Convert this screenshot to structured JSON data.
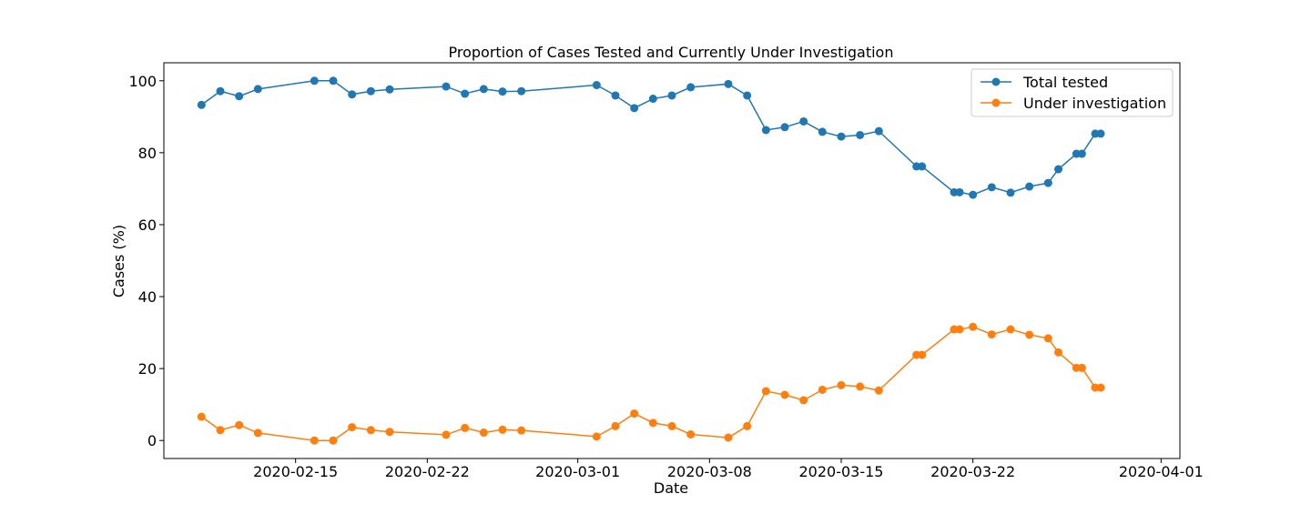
{
  "chart_data": {
    "type": "line",
    "title": "Proportion of Cases Tested and Currently Under Investigation",
    "xlabel": "Date",
    "ylabel": "Cases (%)",
    "x_ticks": [
      "2020-02-15",
      "2020-02-22",
      "2020-03-01",
      "2020-03-08",
      "2020-03-15",
      "2020-03-22",
      "2020-04-01"
    ],
    "y_ticks": [
      0,
      20,
      40,
      60,
      80,
      100
    ],
    "xlim": [
      "2020-02-08",
      "2020-04-02"
    ],
    "ylim": [
      -5,
      105
    ],
    "grid": false,
    "legend_position": "top-right",
    "x": [
      "2020-02-10",
      "2020-02-11",
      "2020-02-12",
      "2020-02-13",
      "2020-02-16",
      "2020-02-17",
      "2020-02-18",
      "2020-02-19",
      "2020-02-20",
      "2020-02-23",
      "2020-02-24",
      "2020-02-25",
      "2020-02-26",
      "2020-02-27",
      "2020-03-02",
      "2020-03-03",
      "2020-03-04",
      "2020-03-05",
      "2020-03-06",
      "2020-03-07",
      "2020-03-09",
      "2020-03-10",
      "2020-03-11",
      "2020-03-12",
      "2020-03-13",
      "2020-03-14",
      "2020-03-15",
      "2020-03-16",
      "2020-03-17",
      "2020-03-19",
      "2020-03-20",
      "2020-03-21",
      "2020-03-23",
      "2020-03-24",
      "2020-03-25",
      "2020-03-26",
      "2020-03-27",
      "2020-03-28",
      "2020-03-29",
      "2020-03-30",
      "2020-03-31"
    ],
    "x_offsets_days": [],
    "series": [
      {
        "name": "Total tested",
        "color": "#1f77b4",
        "points": [
          [
            "2020-02-10",
            93.3
          ],
          [
            "2020-02-11",
            97.1
          ],
          [
            "2020-02-12",
            95.7
          ],
          [
            "2020-02-13",
            97.7
          ],
          [
            "2020-02-16",
            100.0
          ],
          [
            "2020-02-17",
            100.0
          ],
          [
            "2020-02-18",
            96.2
          ],
          [
            "2020-02-19",
            97.1
          ],
          [
            "2020-02-20",
            97.6
          ],
          [
            "2020-02-23",
            98.4
          ],
          [
            "2020-02-24",
            96.4
          ],
          [
            "2020-02-25",
            97.7
          ],
          [
            "2020-02-26",
            97.0
          ],
          [
            "2020-02-27",
            97.1
          ],
          [
            "2020-03-02",
            98.8
          ],
          [
            "2020-03-03",
            95.9
          ],
          [
            "2020-03-04",
            92.4
          ],
          [
            "2020-03-05",
            95.0
          ],
          [
            "2020-03-06",
            95.9
          ],
          [
            "2020-03-07",
            98.2
          ],
          [
            "2020-03-09",
            99.1
          ],
          [
            "2020-03-10",
            95.9
          ],
          [
            "2020-03-11",
            86.3
          ],
          [
            "2020-03-12",
            87.1
          ],
          [
            "2020-03-13",
            88.7
          ],
          [
            "2020-03-14",
            85.8
          ],
          [
            "2020-03-15",
            84.5
          ],
          [
            "2020-03-16",
            84.9
          ],
          [
            "2020-03-17",
            86.0
          ],
          [
            "2020-03-19",
            76.2
          ],
          [
            "2020-03-19 07:00",
            76.2
          ],
          [
            "2020-03-21",
            69.0
          ],
          [
            "2020-03-21 07:00",
            69.0
          ],
          [
            "2020-03-22",
            68.3
          ],
          [
            "2020-03-23",
            70.4
          ],
          [
            "2020-03-24",
            68.9
          ],
          [
            "2020-03-25",
            70.6
          ],
          [
            "2020-03-26",
            71.6
          ],
          [
            "2020-03-26 13:00",
            75.4
          ],
          [
            "2020-03-27 12:00",
            79.7
          ],
          [
            "2020-03-27 19:00",
            79.7
          ],
          [
            "2020-03-28 12:00",
            85.3
          ],
          [
            "2020-03-28 19:00",
            85.3
          ]
        ]
      },
      {
        "name": "Under investigation",
        "color": "#ff7f0e",
        "points": [
          [
            "2020-02-10",
            6.6
          ],
          [
            "2020-02-11",
            2.9
          ],
          [
            "2020-02-12",
            4.3
          ],
          [
            "2020-02-13",
            2.1
          ],
          [
            "2020-02-16",
            0.0
          ],
          [
            "2020-02-17",
            0.0
          ],
          [
            "2020-02-18",
            3.7
          ],
          [
            "2020-02-19",
            2.9
          ],
          [
            "2020-02-20",
            2.4
          ],
          [
            "2020-02-23",
            1.6
          ],
          [
            "2020-02-24",
            3.5
          ],
          [
            "2020-02-25",
            2.2
          ],
          [
            "2020-02-26",
            3.0
          ],
          [
            "2020-02-27",
            2.8
          ],
          [
            "2020-03-02",
            1.1
          ],
          [
            "2020-03-03",
            4.0
          ],
          [
            "2020-03-04",
            7.5
          ],
          [
            "2020-03-05",
            4.9
          ],
          [
            "2020-03-06",
            4.0
          ],
          [
            "2020-03-07",
            1.7
          ],
          [
            "2020-03-09",
            0.8
          ],
          [
            "2020-03-10",
            4.0
          ],
          [
            "2020-03-11",
            13.7
          ],
          [
            "2020-03-12",
            12.7
          ],
          [
            "2020-03-13",
            11.2
          ],
          [
            "2020-03-14",
            14.1
          ],
          [
            "2020-03-15",
            15.4
          ],
          [
            "2020-03-16",
            15.0
          ],
          [
            "2020-03-17",
            13.9
          ],
          [
            "2020-03-19",
            23.8
          ],
          [
            "2020-03-19 07:00",
            23.8
          ],
          [
            "2020-03-21",
            30.9
          ],
          [
            "2020-03-21 07:00",
            30.9
          ],
          [
            "2020-03-22",
            31.6
          ],
          [
            "2020-03-23",
            29.5
          ],
          [
            "2020-03-24",
            30.9
          ],
          [
            "2020-03-25",
            29.4
          ],
          [
            "2020-03-26",
            28.4
          ],
          [
            "2020-03-26 13:00",
            24.5
          ],
          [
            "2020-03-27 12:00",
            20.2
          ],
          [
            "2020-03-27 19:00",
            20.2
          ],
          [
            "2020-03-28 12:00",
            14.7
          ],
          [
            "2020-03-28 19:00",
            14.7
          ]
        ]
      }
    ]
  }
}
